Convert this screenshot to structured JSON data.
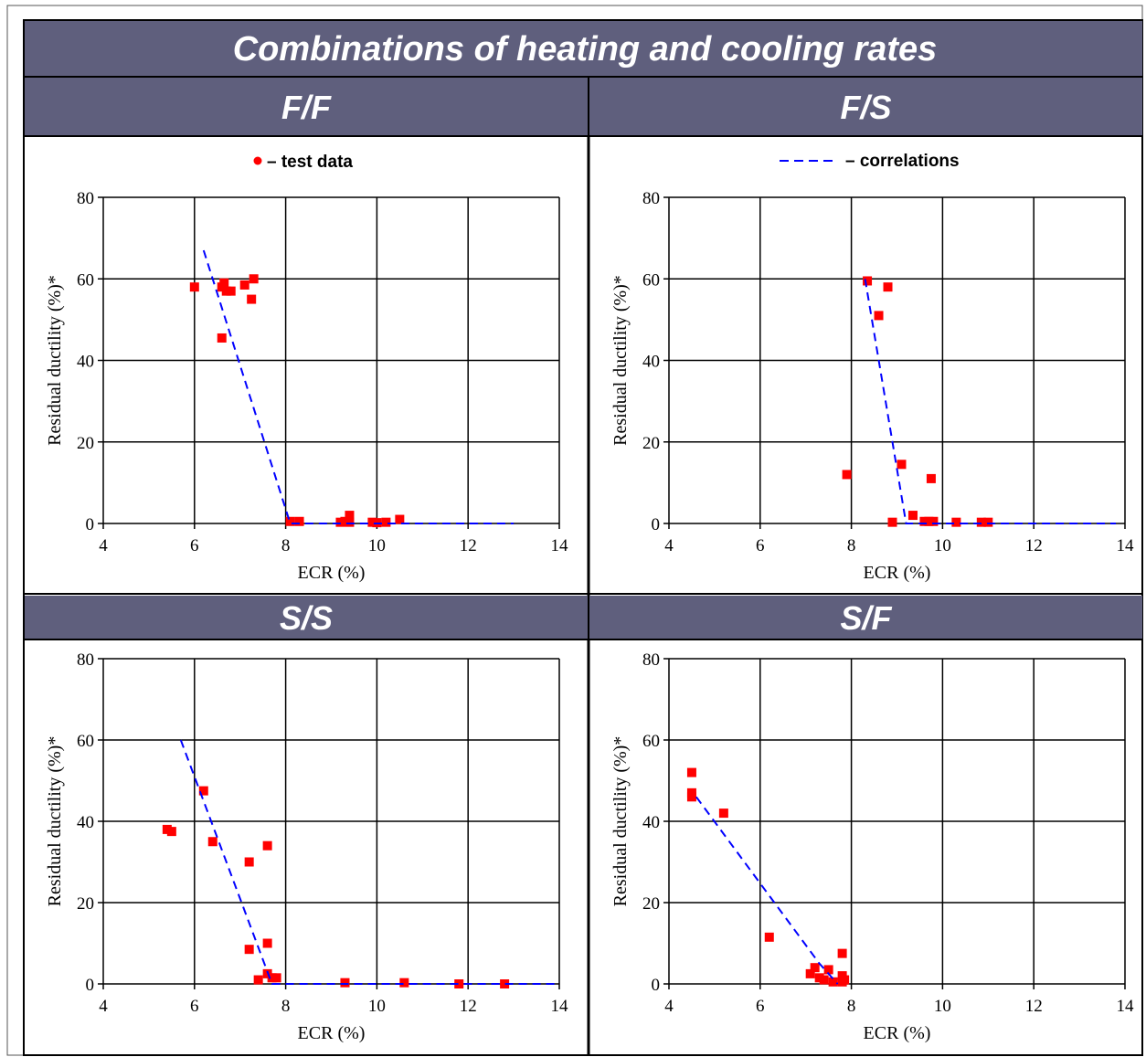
{
  "figure": {
    "title": "Combinations of heating and cooling rates",
    "legend": {
      "test_data": "– test data",
      "correlations": "– correlations"
    },
    "colors": {
      "banner": "#5f5f7d",
      "points": "#ff0000",
      "line": "#0000ff",
      "grid": "#000000"
    }
  },
  "chart_data": [
    {
      "type": "scatter",
      "title": "F/F",
      "xlabel": "ECR (%)",
      "ylabel": "Residual ductility (%)*",
      "xlim": [
        4,
        14
      ],
      "ylim": [
        0,
        80
      ],
      "xticks": [
        4,
        6,
        8,
        10,
        12,
        14
      ],
      "yticks": [
        0,
        20,
        40,
        60,
        80
      ],
      "grid": true,
      "legend": "test-data",
      "series": [
        {
          "name": "test data",
          "marker": "point",
          "points": [
            [
              6.0,
              58
            ],
            [
              6.6,
              58
            ],
            [
              6.65,
              59
            ],
            [
              6.7,
              57
            ],
            [
              6.8,
              57
            ],
            [
              7.1,
              58.5
            ],
            [
              7.25,
              55
            ],
            [
              7.3,
              60
            ],
            [
              6.6,
              45.5
            ],
            [
              8.1,
              0.5
            ],
            [
              8.3,
              0.5
            ],
            [
              9.2,
              0.3
            ],
            [
              9.3,
              0.5
            ],
            [
              9.4,
              2
            ],
            [
              9.4,
              0.3
            ],
            [
              9.9,
              0.3
            ],
            [
              10.0,
              0.2
            ],
            [
              10.2,
              0.3
            ],
            [
              10.5,
              1
            ]
          ]
        },
        {
          "name": "correlations",
          "marker": "dashed-line",
          "points": [
            [
              6.2,
              67
            ],
            [
              8.1,
              0
            ],
            [
              13.0,
              0
            ]
          ]
        }
      ]
    },
    {
      "type": "scatter",
      "title": "F/S",
      "xlabel": "ECR (%)",
      "ylabel": "Residual ductility (%)*",
      "xlim": [
        4,
        14
      ],
      "ylim": [
        0,
        80
      ],
      "xticks": [
        4,
        6,
        8,
        10,
        12,
        14
      ],
      "yticks": [
        0,
        20,
        40,
        60,
        80
      ],
      "grid": true,
      "legend": "correlations",
      "series": [
        {
          "name": "test data",
          "marker": "point",
          "points": [
            [
              8.35,
              59.5
            ],
            [
              8.6,
              51
            ],
            [
              8.8,
              58
            ],
            [
              7.9,
              12
            ],
            [
              9.1,
              14.5
            ],
            [
              8.9,
              0.3
            ],
            [
              9.35,
              2
            ],
            [
              9.6,
              0.5
            ],
            [
              9.7,
              0.5
            ],
            [
              9.75,
              11
            ],
            [
              9.8,
              0.5
            ],
            [
              10.3,
              0.3
            ],
            [
              10.85,
              0.3
            ],
            [
              11.0,
              0.3
            ]
          ]
        },
        {
          "name": "correlations",
          "marker": "dashed-line",
          "points": [
            [
              8.3,
              60
            ],
            [
              9.2,
              0
            ],
            [
              13.8,
              0
            ]
          ]
        }
      ]
    },
    {
      "type": "scatter",
      "title": "S/S",
      "xlabel": "ECR (%)",
      "ylabel": "Residual ductility (%)*",
      "xlim": [
        4,
        14
      ],
      "ylim": [
        0,
        80
      ],
      "xticks": [
        4,
        6,
        8,
        10,
        12,
        14
      ],
      "yticks": [
        0,
        20,
        40,
        60,
        80
      ],
      "grid": true,
      "legend": "none",
      "series": [
        {
          "name": "test data",
          "marker": "point",
          "points": [
            [
              5.4,
              38
            ],
            [
              5.5,
              37.5
            ],
            [
              6.2,
              47.5
            ],
            [
              6.4,
              35
            ],
            [
              7.2,
              30
            ],
            [
              7.6,
              34
            ],
            [
              7.6,
              10
            ],
            [
              7.2,
              8.5
            ],
            [
              7.4,
              1
            ],
            [
              7.6,
              2.5
            ],
            [
              7.7,
              1.5
            ],
            [
              7.8,
              1.5
            ],
            [
              9.3,
              0.3
            ],
            [
              10.6,
              0.3
            ],
            [
              11.8,
              0
            ],
            [
              12.8,
              0
            ]
          ]
        },
        {
          "name": "correlations",
          "marker": "dashed-line",
          "points": [
            [
              5.7,
              60
            ],
            [
              7.7,
              0
            ],
            [
              14.0,
              0
            ]
          ]
        }
      ]
    },
    {
      "type": "scatter",
      "title": "S/F",
      "xlabel": "ECR (%)",
      "ylabel": "Residual ductility (%)*",
      "xlim": [
        4,
        14
      ],
      "ylim": [
        0,
        80
      ],
      "xticks": [
        4,
        6,
        8,
        10,
        12,
        14
      ],
      "yticks": [
        0,
        20,
        40,
        60,
        80
      ],
      "grid": true,
      "legend": "none",
      "series": [
        {
          "name": "test data",
          "marker": "point",
          "points": [
            [
              4.5,
              52
            ],
            [
              4.5,
              47
            ],
            [
              4.5,
              46
            ],
            [
              5.2,
              42
            ],
            [
              6.2,
              11.5
            ],
            [
              7.1,
              2.5
            ],
            [
              7.2,
              4
            ],
            [
              7.3,
              1.5
            ],
            [
              7.4,
              1
            ],
            [
              7.5,
              3.5
            ],
            [
              7.6,
              0.5
            ],
            [
              7.8,
              7.5
            ],
            [
              7.8,
              2
            ],
            [
              7.8,
              0.5
            ],
            [
              7.85,
              1
            ]
          ]
        },
        {
          "name": "correlations",
          "marker": "dashed-line",
          "points": [
            [
              4.6,
              46
            ],
            [
              7.3,
              5
            ],
            [
              7.7,
              0
            ]
          ]
        }
      ]
    }
  ]
}
